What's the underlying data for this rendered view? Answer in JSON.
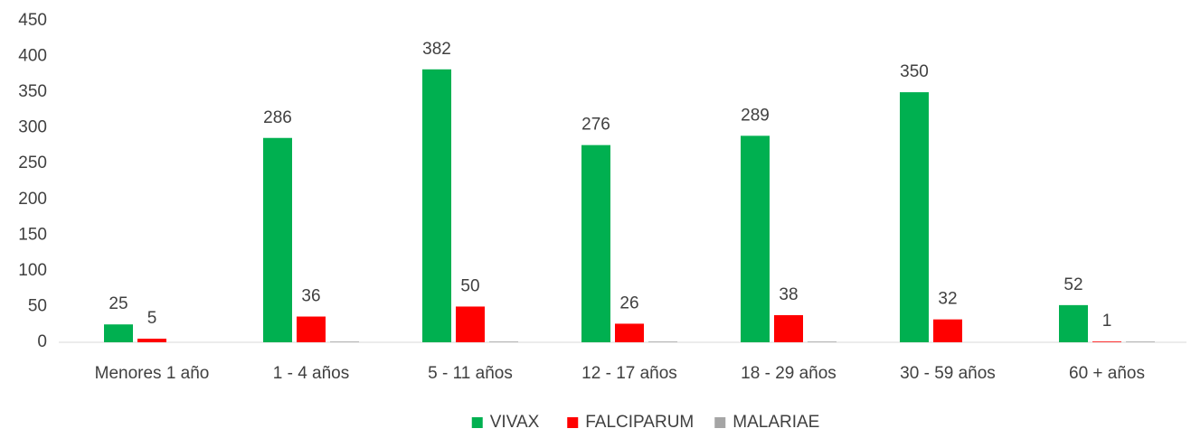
{
  "chart_data": {
    "type": "bar",
    "categories": [
      "Menores 1 año",
      "1 - 4 años",
      "5 - 11 años",
      "12 - 17 años",
      "18 - 29 años",
      "30 - 59 años",
      "60 + años"
    ],
    "series": [
      {
        "name": "VIVAX",
        "color": "#00b050",
        "values": [
          25,
          286,
          382,
          276,
          289,
          350,
          52
        ],
        "data_labels": true
      },
      {
        "name": "FALCIPARUM",
        "color": "#ff0000",
        "values": [
          5,
          36,
          50,
          26,
          38,
          32,
          1
        ],
        "data_labels": true
      },
      {
        "name": "MALARIAE",
        "color": "#a5a5a5",
        "values": [
          0,
          1,
          1,
          1,
          1,
          0,
          1
        ],
        "data_labels": false
      }
    ],
    "ylim": [
      0,
      450
    ],
    "yticks": [
      0,
      50,
      100,
      150,
      200,
      250,
      300,
      350,
      400,
      450
    ],
    "grid": false,
    "legend": "bottom"
  }
}
